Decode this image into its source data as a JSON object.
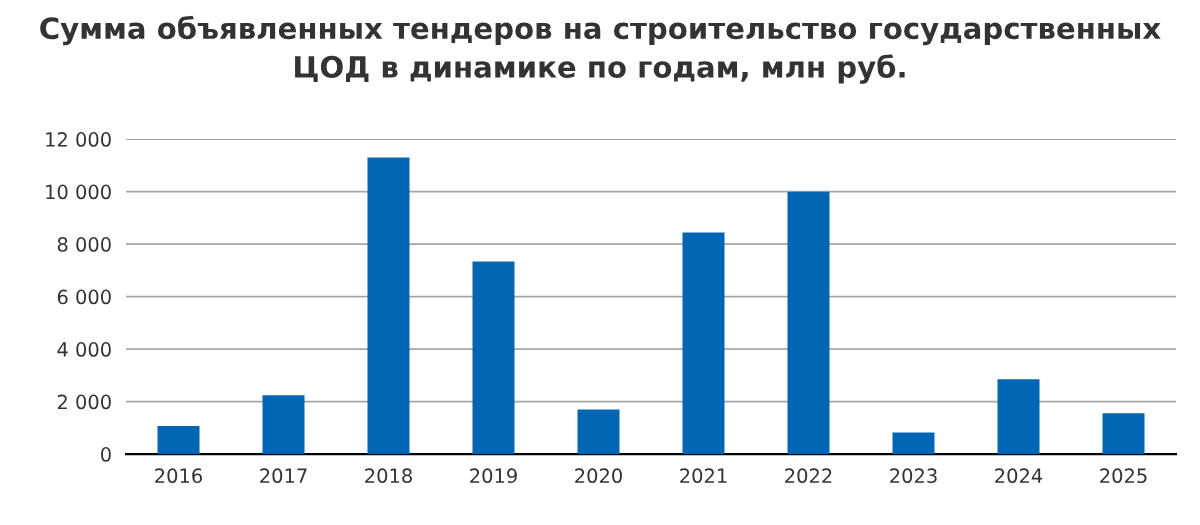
{
  "chart_data": {
    "type": "bar",
    "title": "Сумма объявленных тендеров на строительство государственных\nЦОД в динамике по годам, млн руб.",
    "categories": [
      "2016",
      "2017",
      "2018",
      "2019",
      "2020",
      "2021",
      "2022",
      "2023",
      "2024",
      "2025"
    ],
    "values": [
      1070,
      2240,
      11300,
      7340,
      1700,
      8440,
      10000,
      820,
      2850,
      1560
    ],
    "color": "#0066b3",
    "ylim": [
      0,
      12000
    ],
    "yticks": [
      0,
      {
        "value": 2000,
        "label": "2 000"
      },
      {
        "value": 4000,
        "label": "4 000"
      },
      {
        "value": 6000,
        "label": "6 000"
      },
      {
        "value": 8000,
        "label": "8 000"
      },
      {
        "value": 10000,
        "label": "10 000"
      },
      {
        "value": 12000,
        "label": "12 000"
      }
    ],
    "grid": "y"
  }
}
